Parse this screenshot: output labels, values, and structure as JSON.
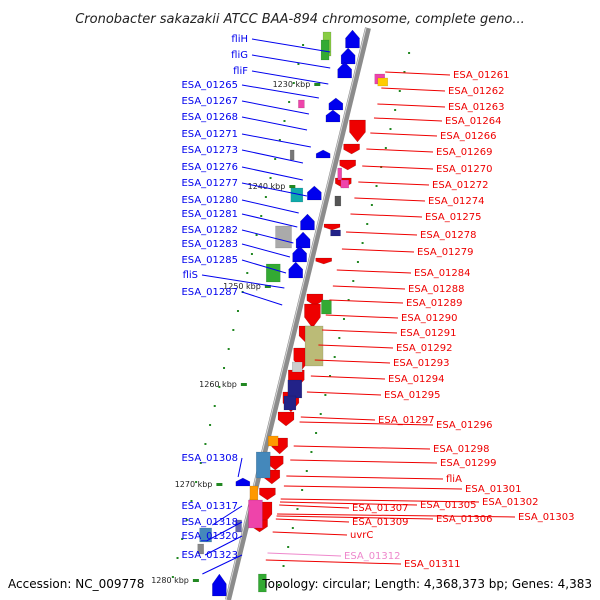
{
  "title": "Cronobacter sakazakii ATCC BAA-894 chromosome, complete geno...",
  "footer": {
    "accession": "Accession: NC_009778",
    "info": "Topology: circular; Length: 4,368,373 bp; Genes: 4,383"
  },
  "colors": {
    "forward": "#0000ee",
    "reverse": "#ee0000",
    "highlight": "#ee88cc",
    "backbone": "#888888",
    "tick": "#228822"
  },
  "scale_ticks": [
    "1230 kbp",
    "1240 kbp",
    "1250 kbp",
    "1260 kbp",
    "1270 kbp",
    "1280 kbp"
  ],
  "left_labels": [
    "fliH",
    "fliG",
    "fliF",
    "ESA_01265",
    "ESA_01267",
    "ESA_01268",
    "ESA_01271",
    "ESA_01273",
    "ESA_01276",
    "ESA_01277",
    "ESA_01280",
    "ESA_01281",
    "ESA_01282",
    "ESA_01283",
    "ESA_01285",
    "fliS",
    "ESA_01287",
    "ESA_01308",
    "ESA_01317",
    "ESA_01318",
    "ESA_01320",
    "ESA_01323"
  ],
  "right_labels": [
    "ESA_01261",
    "ESA_01262",
    "ESA_01263",
    "ESA_01264",
    "ESA_01266",
    "ESA_01269",
    "ESA_01270",
    "ESA_01272",
    "ESA_01274",
    "ESA_01275",
    "ESA_01278",
    "ESA_01279",
    "ESA_01284",
    "ESA_01288",
    "ESA_01289",
    "ESA_01290",
    "ESA_01291",
    "ESA_01292",
    "ESA_01293",
    "ESA_01294",
    "ESA_01295",
    "ESA_01297",
    "ESA_01296",
    "ESA_01298",
    "ESA_01299",
    "fliA",
    "ESA_01301",
    "ESA_01302",
    "ESA_01305",
    "ESA_01303",
    "ESA_01307",
    "ESA_01306",
    "ESA_01309",
    "uvrC",
    "ESA_01312",
    "ESA_01311"
  ],
  "highlighted_label": "ESA_01312"
}
